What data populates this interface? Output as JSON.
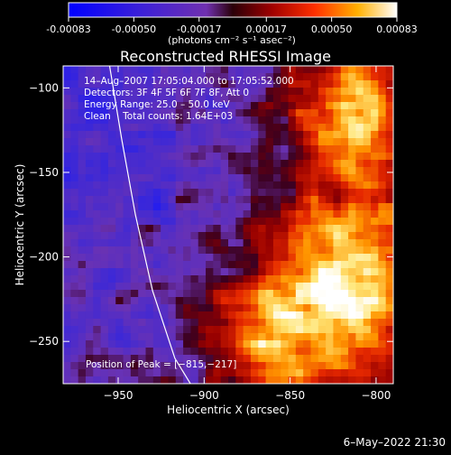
{
  "colorbar": {
    "tick_labels": [
      "-0.00083",
      "-0.00050",
      "-0.00017",
      "0.00017",
      "0.00050",
      "0.00083"
    ],
    "tick_values": [
      -0.00083,
      -0.0005,
      -0.00017,
      0.00017,
      0.0005,
      0.00083
    ],
    "range": [
      -0.00083,
      0.00083
    ],
    "unit_label": "(photons cm⁻² s⁻¹ asec⁻²)"
  },
  "chart_data": {
    "type": "heatmap",
    "title": "Reconstructed RHESSI Image",
    "xlabel": "Heliocentric X (arcsec)",
    "ylabel": "Heliocentric Y (arcsec)",
    "xlim": [
      -982,
      -790
    ],
    "ylim": [
      -275,
      -87
    ],
    "x_ticks": [
      -950,
      -900,
      -850,
      -800
    ],
    "x_tick_labels": [
      "−950",
      "−900",
      "−850",
      "−800"
    ],
    "y_ticks": [
      -100,
      -150,
      -200,
      -250
    ],
    "y_tick_labels": [
      "−100",
      "−150",
      "−200",
      "−250"
    ],
    "peak": [
      -815,
      -217
    ],
    "info_lines": [
      "14–Aug–2007 17:05:04.000 to 17:05:52.000",
      "Detectors: 3F 4F 5F 6F 7F 8F, Att 0",
      "Energy Range: 25.0 – 50.0 keV",
      "Clean    Total counts: 1.64E+03"
    ],
    "peak_label": "Position of Peak = [−815,−217]",
    "limb_curve": [
      [
        -955,
        -87
      ],
      [
        -948,
        -130
      ],
      [
        -940,
        -175
      ],
      [
        -930,
        -220
      ],
      [
        -917,
        -260
      ],
      [
        -908,
        -275
      ]
    ]
  },
  "footer": {
    "timestamp": "6–May–2022 21:30"
  },
  "colors": {
    "background": "#000000",
    "low_blue": "#2020ff",
    "mid_purple": "#7030b0",
    "high_red": "#d01000",
    "peak_white": "#ffffff"
  }
}
